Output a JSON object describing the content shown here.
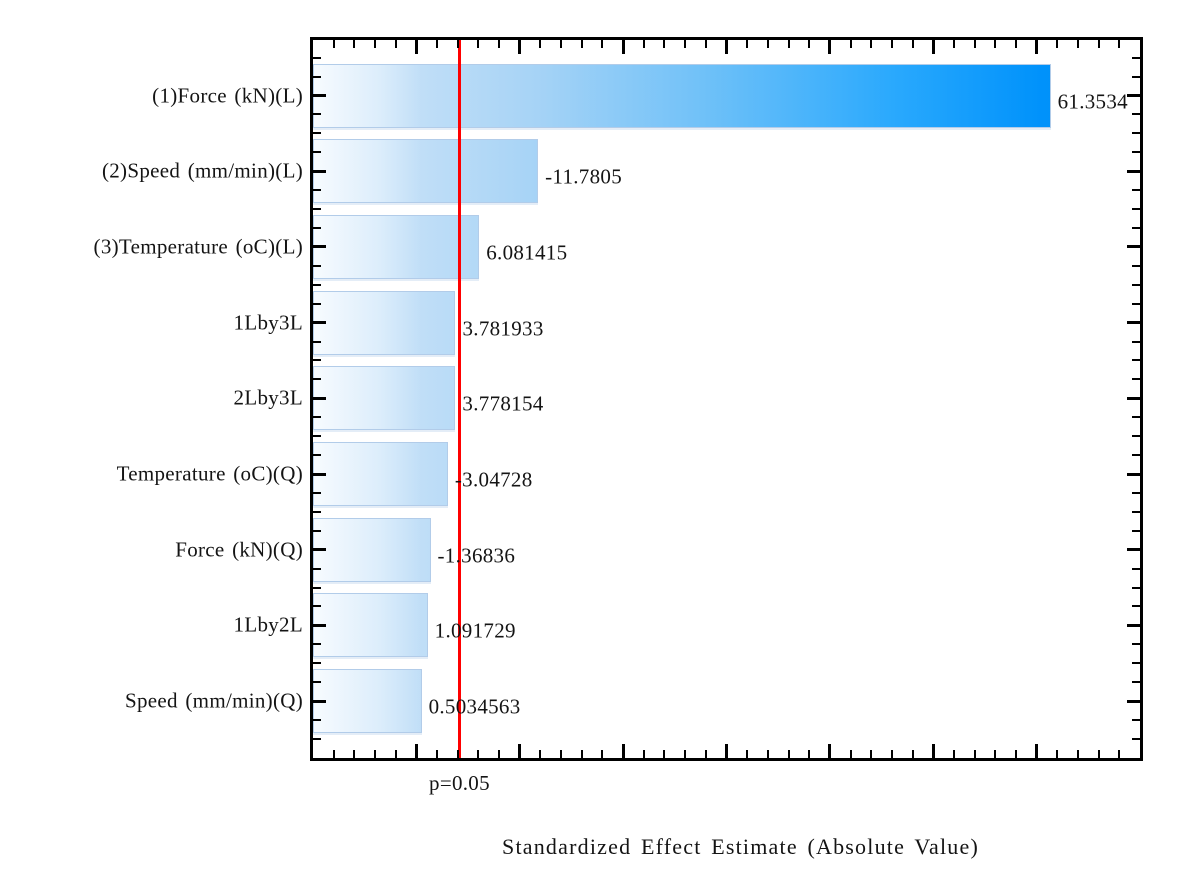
{
  "figure": {
    "background": "#ffffff",
    "frame_color": "#000000",
    "text_color": "#141414"
  },
  "chart_data": {
    "type": "bar",
    "orientation": "horizontal",
    "subtype": "pareto-of-standardized-effects",
    "title": "",
    "xlabel": "Standardized Effect Estimate (Absolute Value)",
    "ylabel": "",
    "categories": [
      "(1)Force (kN)(L)",
      "(2)Speed (mm/min)(L)",
      "(3)Temperature (oC)(L)",
      "1Lby3L",
      "2Lby3L",
      "Temperature (oC)(Q)",
      "Force (kN)(Q)",
      "1Lby2L",
      "Speed (mm/min)(Q)"
    ],
    "values": [
      61.3534,
      -11.7805,
      6.081415,
      3.781933,
      3.778154,
      -3.04728,
      -1.36836,
      1.091729,
      0.5034563
    ],
    "value_labels": [
      "61.3534",
      "-11.7805",
      "6.081415",
      "3.781933",
      "3.778154",
      "-3.04728",
      "-1.36836",
      "1.091729",
      "0.5034563"
    ],
    "bars_plot_absolute_value": true,
    "xlim": [
      -10,
      70
    ],
    "x_minor_step": 2,
    "x_major_step": 10,
    "grid": false,
    "legend": null,
    "p_line": {
      "label": "p=0.05",
      "x_value": 4.17,
      "color": "#ff0000"
    },
    "bar_gradient_stops": [
      {
        "pos": 0,
        "color": "#f7fbff"
      },
      {
        "pos": 8,
        "color": "#dcedfb"
      },
      {
        "pos": 13,
        "color": "#c0def7"
      },
      {
        "pos": 27,
        "color": "#a6d3f6"
      },
      {
        "pos": 47,
        "color": "#70c1f8"
      },
      {
        "pos": 70,
        "color": "#2aa9fd"
      },
      {
        "pos": 88,
        "color": "#0092fb"
      },
      {
        "pos": 100,
        "color": "#008af3"
      }
    ]
  }
}
